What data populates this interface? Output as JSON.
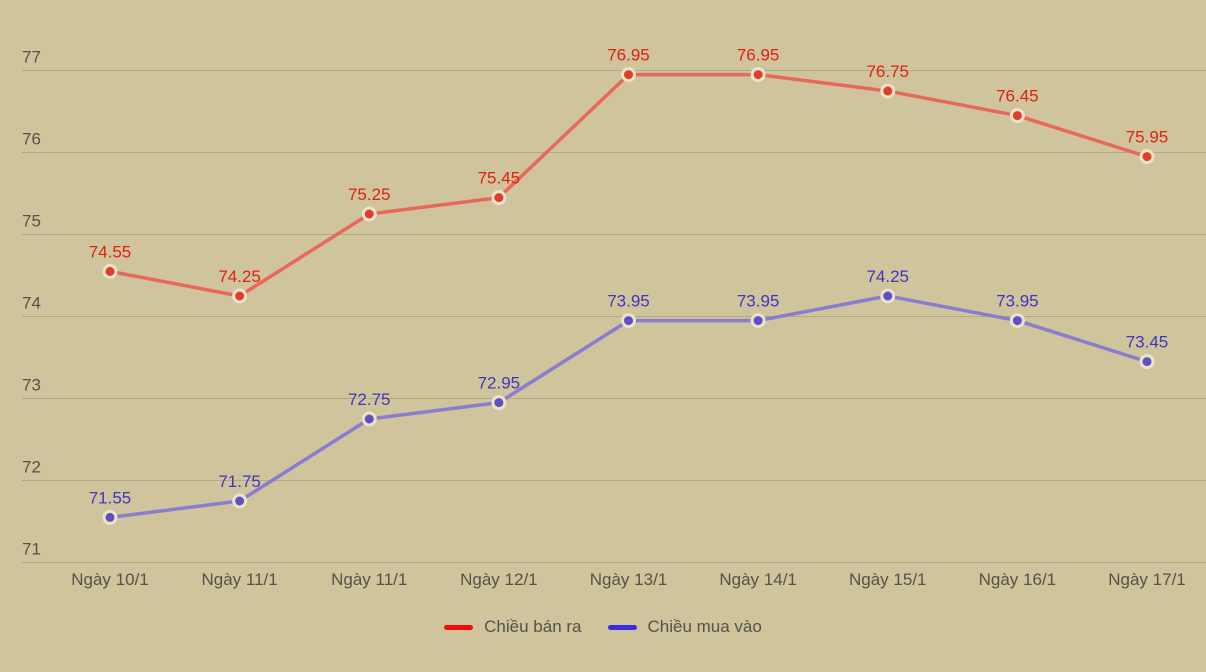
{
  "chart_data": {
    "type": "line",
    "categories": [
      "Ngày 10/1",
      "Ngày 11/1",
      "Ngày 11/1",
      "Ngày 12/1",
      "Ngày 13/1",
      "Ngày 14/1",
      "Ngày 15/1",
      "Ngày 16/1",
      "Ngày 17/1"
    ],
    "series": [
      {
        "name": "Chiều bán ra",
        "values": [
          74.55,
          74.25,
          75.25,
          75.45,
          76.95,
          76.95,
          76.75,
          76.45,
          75.95
        ],
        "line_color": "#e8685a",
        "marker_color": "#df3e2b",
        "label_color": "#e02114",
        "legend_color": "#f20d0d"
      },
      {
        "name": "Chiều mua vào",
        "values": [
          71.55,
          71.75,
          72.75,
          72.95,
          73.95,
          73.95,
          74.25,
          73.95,
          73.45
        ],
        "line_color": "#8a7ccf",
        "marker_color": "#5f50c3",
        "label_color": "#4334c0",
        "legend_color": "#3e2ce0"
      }
    ],
    "yticks": [
      "71",
      "72",
      "73",
      "74",
      "75",
      "76",
      "77"
    ],
    "ylim": [
      71,
      77
    ],
    "ytick_step": 1,
    "grid": true,
    "legend_position": "bottom",
    "data_labels": true,
    "colors": {
      "background": "#cfc49c",
      "gridline": "#b2a883",
      "axis_text": "#55524a",
      "legend_text": "#55524a",
      "marker_ring": "#ece3cb"
    }
  }
}
